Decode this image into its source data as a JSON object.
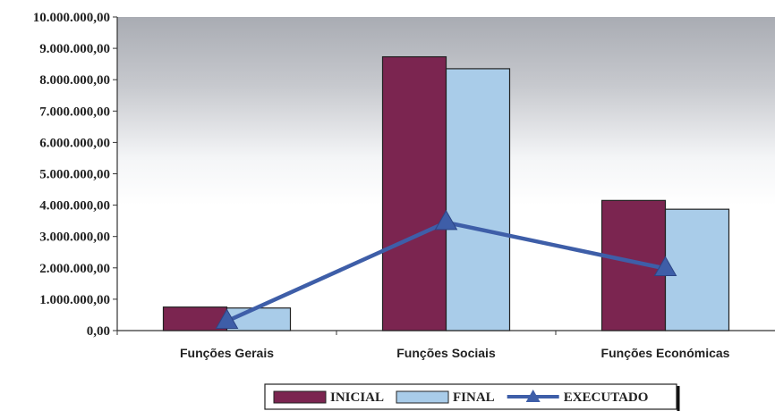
{
  "chart_data": {
    "type": "bar",
    "categories": [
      "Funções Gerais",
      "Funções Sociais",
      "Funções Económicas"
    ],
    "series": [
      {
        "name": "INICIAL",
        "kind": "bar",
        "color": "#7b2550",
        "values": [
          750000,
          8730000,
          4150000
        ]
      },
      {
        "name": "FINAL",
        "kind": "bar",
        "color": "#a9cce9",
        "values": [
          720000,
          8350000,
          3870000
        ]
      },
      {
        "name": "EXECUTADO",
        "kind": "line",
        "color": "#3e5ea8",
        "values": [
          300000,
          3450000,
          1980000
        ]
      }
    ],
    "yticks": [
      "0,00",
      "1.000.000,00",
      "2.000.000,00",
      "3.000.000,00",
      "4.000.000,00",
      "5.000.000,00",
      "6.000.000,00",
      "7.000.000,00",
      "8.000.000,00",
      "9.000.000,00",
      "10.000.000,00"
    ],
    "ylim": [
      0,
      10000000
    ],
    "legend_position": "bottom",
    "background": "gray gradient plot area"
  }
}
